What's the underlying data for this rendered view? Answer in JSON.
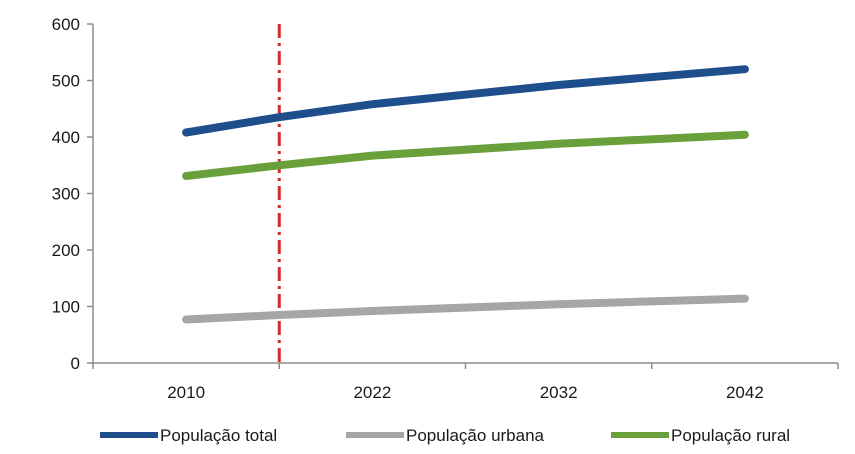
{
  "chart_data": {
    "type": "line",
    "x": [
      "2010",
      "2022",
      "2032",
      "2042"
    ],
    "ylim": [
      0,
      600
    ],
    "yticks": [
      0,
      100,
      200,
      300,
      400,
      500,
      600
    ],
    "grid": false,
    "legend_position": "bottom",
    "marker_x": "2016",
    "series": [
      {
        "name": "População total",
        "color": "#1f4e8c",
        "points": [
          [
            2010,
            408
          ],
          [
            2016,
            435
          ],
          [
            2022,
            458
          ],
          [
            2032,
            492
          ],
          [
            2042,
            520
          ]
        ]
      },
      {
        "name": "População urbana",
        "color": "#a6a6a6",
        "points": [
          [
            2010,
            77
          ],
          [
            2016,
            85
          ],
          [
            2022,
            92
          ],
          [
            2032,
            104
          ],
          [
            2042,
            114
          ]
        ]
      },
      {
        "name": "População rural",
        "color": "#6aa03c",
        "points": [
          [
            2010,
            331
          ],
          [
            2016,
            350
          ],
          [
            2022,
            367
          ],
          [
            2032,
            388
          ],
          [
            2042,
            404
          ]
        ]
      }
    ],
    "marker_color": "#d42b2b"
  }
}
